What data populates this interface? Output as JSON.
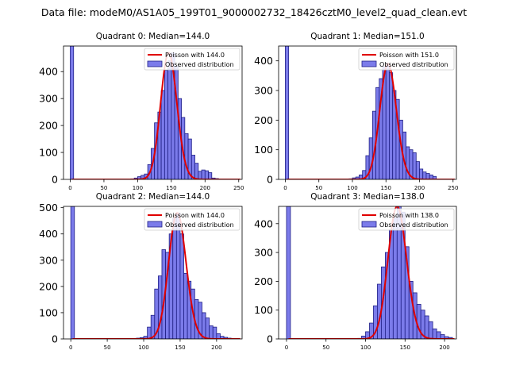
{
  "page_title": "Data file: modeM0/AS1A05_199T01_9000002732_18426cztM0_level2_quad_clean.evt",
  "colors": {
    "bar_fill": "#7b7bea",
    "bar_edge": "#1f1f86",
    "curve": "#e00000",
    "axis": "#000000"
  },
  "legend_labels": {
    "observed": "Observed distribution"
  },
  "chart_data": [
    {
      "type": "bar",
      "title": "Quadrant 0: Median=144.0",
      "poisson_mean": 144.0,
      "poisson_label": "Poisson with 144.0",
      "legend_position": "upper-right",
      "xlim": [
        -10,
        255
      ],
      "ylim": [
        0,
        495
      ],
      "xticks": [
        0,
        50,
        100,
        150,
        200,
        250
      ],
      "xtick_labels": [
        "0",
        "50",
        "100",
        "150",
        "200",
        "250"
      ],
      "yticks": [
        0,
        100,
        200,
        300,
        400
      ],
      "ytick_labels": [
        "0",
        "100",
        "200",
        "300",
        "400"
      ],
      "bin_width": 5,
      "zero_bin": {
        "x": 0,
        "value": 495
      },
      "bins": [
        {
          "x": 90,
          "value": 2
        },
        {
          "x": 95,
          "value": 5
        },
        {
          "x": 100,
          "value": 10
        },
        {
          "x": 105,
          "value": 15
        },
        {
          "x": 110,
          "value": 20
        },
        {
          "x": 115,
          "value": 55
        },
        {
          "x": 120,
          "value": 115
        },
        {
          "x": 125,
          "value": 210
        },
        {
          "x": 130,
          "value": 250
        },
        {
          "x": 135,
          "value": 330
        },
        {
          "x": 140,
          "value": 405
        },
        {
          "x": 145,
          "value": 440
        },
        {
          "x": 150,
          "value": 470
        },
        {
          "x": 155,
          "value": 420
        },
        {
          "x": 160,
          "value": 300
        },
        {
          "x": 165,
          "value": 230
        },
        {
          "x": 170,
          "value": 170
        },
        {
          "x": 175,
          "value": 150
        },
        {
          "x": 180,
          "value": 90
        },
        {
          "x": 185,
          "value": 60
        },
        {
          "x": 190,
          "value": 30
        },
        {
          "x": 195,
          "value": 35
        },
        {
          "x": 200,
          "value": 32
        },
        {
          "x": 205,
          "value": 25
        },
        {
          "x": 210,
          "value": 5
        },
        {
          "x": 215,
          "value": 3
        }
      ]
    },
    {
      "type": "bar",
      "title": "Quadrant 1: Median=151.0",
      "poisson_mean": 151.0,
      "poisson_label": "Poisson with 151.0",
      "legend_position": "upper-right",
      "xlim": [
        -10,
        255
      ],
      "ylim": [
        0,
        450
      ],
      "xticks": [
        0,
        50,
        100,
        150,
        200,
        250
      ],
      "xtick_labels": [
        "0",
        "50",
        "100",
        "150",
        "200",
        "250"
      ],
      "yticks": [
        0,
        100,
        200,
        300,
        400
      ],
      "ytick_labels": [
        "0",
        "100",
        "200",
        "300",
        "400"
      ],
      "bin_width": 5,
      "zero_bin": {
        "x": 0,
        "value": 450
      },
      "bins": [
        {
          "x": 95,
          "value": 2
        },
        {
          "x": 100,
          "value": 5
        },
        {
          "x": 105,
          "value": 8
        },
        {
          "x": 110,
          "value": 15
        },
        {
          "x": 115,
          "value": 30
        },
        {
          "x": 120,
          "value": 80
        },
        {
          "x": 125,
          "value": 140
        },
        {
          "x": 130,
          "value": 230
        },
        {
          "x": 135,
          "value": 310
        },
        {
          "x": 140,
          "value": 340
        },
        {
          "x": 145,
          "value": 380
        },
        {
          "x": 150,
          "value": 390
        },
        {
          "x": 155,
          "value": 360
        },
        {
          "x": 160,
          "value": 300
        },
        {
          "x": 165,
          "value": 270
        },
        {
          "x": 170,
          "value": 200
        },
        {
          "x": 175,
          "value": 160
        },
        {
          "x": 180,
          "value": 110
        },
        {
          "x": 185,
          "value": 100
        },
        {
          "x": 190,
          "value": 90
        },
        {
          "x": 195,
          "value": 60
        },
        {
          "x": 200,
          "value": 35
        },
        {
          "x": 205,
          "value": 25
        },
        {
          "x": 210,
          "value": 20
        },
        {
          "x": 215,
          "value": 15
        },
        {
          "x": 220,
          "value": 10
        }
      ]
    },
    {
      "type": "bar",
      "title": "Quadrant 2: Median=144.0",
      "poisson_mean": 144.0,
      "poisson_label": "Poisson with 144.0",
      "legend_position": "upper-right",
      "xlim": [
        -10,
        235
      ],
      "ylim": [
        0,
        505
      ],
      "xticks": [
        0,
        50,
        100,
        150,
        200
      ],
      "xtick_labels": [
        "0",
        "50",
        "100",
        "150",
        "200"
      ],
      "yticks": [
        0,
        100,
        200,
        300,
        400,
        500
      ],
      "ytick_labels": [
        "0",
        "100",
        "200",
        "300",
        "400",
        "500"
      ],
      "bin_width": 5,
      "zero_bin": {
        "x": 0,
        "value": 505
      },
      "bins": [
        {
          "x": 90,
          "value": 3
        },
        {
          "x": 95,
          "value": 5
        },
        {
          "x": 100,
          "value": 10
        },
        {
          "x": 105,
          "value": 45
        },
        {
          "x": 110,
          "value": 90
        },
        {
          "x": 115,
          "value": 190
        },
        {
          "x": 120,
          "value": 240
        },
        {
          "x": 125,
          "value": 340
        },
        {
          "x": 130,
          "value": 330
        },
        {
          "x": 135,
          "value": 400
        },
        {
          "x": 140,
          "value": 460
        },
        {
          "x": 145,
          "value": 480
        },
        {
          "x": 150,
          "value": 400
        },
        {
          "x": 155,
          "value": 250
        },
        {
          "x": 160,
          "value": 220
        },
        {
          "x": 165,
          "value": 190
        },
        {
          "x": 170,
          "value": 150
        },
        {
          "x": 175,
          "value": 140
        },
        {
          "x": 180,
          "value": 100
        },
        {
          "x": 185,
          "value": 80
        },
        {
          "x": 190,
          "value": 50
        },
        {
          "x": 195,
          "value": 45
        },
        {
          "x": 200,
          "value": 20
        },
        {
          "x": 205,
          "value": 10
        },
        {
          "x": 210,
          "value": 6
        },
        {
          "x": 215,
          "value": 3
        }
      ]
    },
    {
      "type": "bar",
      "title": "Quadrant 3: Median=138.0",
      "poisson_mean": 138.0,
      "poisson_label": "Poisson with 138.0",
      "legend_position": "upper-right",
      "xlim": [
        -10,
        215
      ],
      "ylim": [
        0,
        460
      ],
      "xticks": [
        0,
        50,
        100,
        150,
        200
      ],
      "xtick_labels": [
        "0",
        "50",
        "100",
        "150",
        "200"
      ],
      "yticks": [
        0,
        100,
        200,
        300,
        400
      ],
      "ytick_labels": [
        "0",
        "100",
        "200",
        "300",
        "400"
      ],
      "bin_width": 5,
      "zero_bin": {
        "x": 0,
        "value": 460
      },
      "bins": [
        {
          "x": 90,
          "value": 2
        },
        {
          "x": 95,
          "value": 10
        },
        {
          "x": 100,
          "value": 25
        },
        {
          "x": 105,
          "value": 55
        },
        {
          "x": 110,
          "value": 115
        },
        {
          "x": 115,
          "value": 190
        },
        {
          "x": 120,
          "value": 250
        },
        {
          "x": 125,
          "value": 300
        },
        {
          "x": 130,
          "value": 380
        },
        {
          "x": 135,
          "value": 420
        },
        {
          "x": 140,
          "value": 460
        },
        {
          "x": 145,
          "value": 440
        },
        {
          "x": 150,
          "value": 320
        },
        {
          "x": 155,
          "value": 200
        },
        {
          "x": 160,
          "value": 160
        },
        {
          "x": 165,
          "value": 120
        },
        {
          "x": 170,
          "value": 100
        },
        {
          "x": 175,
          "value": 80
        },
        {
          "x": 180,
          "value": 60
        },
        {
          "x": 185,
          "value": 35
        },
        {
          "x": 190,
          "value": 25
        },
        {
          "x": 195,
          "value": 15
        },
        {
          "x": 200,
          "value": 8
        },
        {
          "x": 205,
          "value": 5
        }
      ]
    }
  ]
}
